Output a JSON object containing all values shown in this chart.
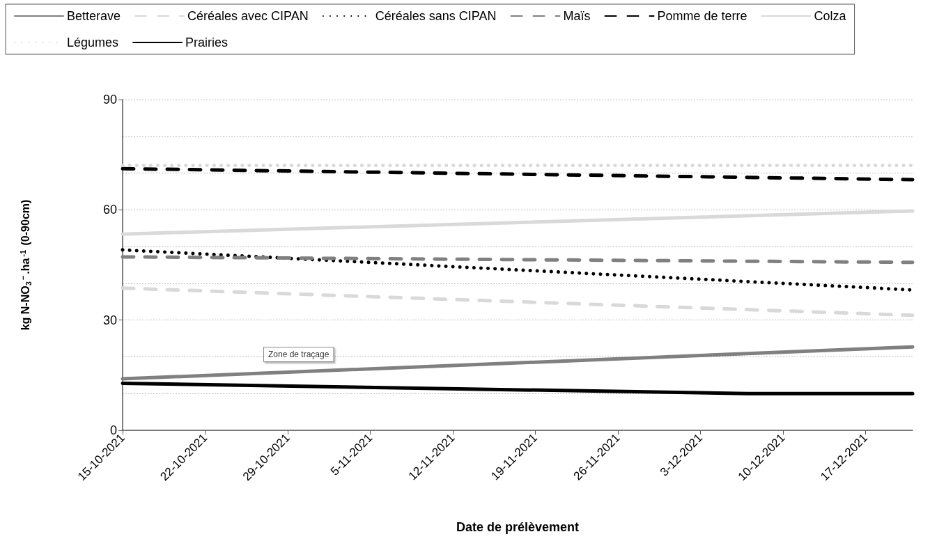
{
  "chart_data": {
    "type": "line",
    "xlabel": "Date de prélèvement",
    "ylabel": "kg N-NO$_{3}$$^{−}$.ha$^{-1}$ (0-90cm)",
    "annotations": [
      "Zone de traçage"
    ],
    "xlim": [
      "2021-10-15",
      "2021-12-21"
    ],
    "xticks": [
      {
        "value": "2021-10-15",
        "label": "15-10-2021"
      },
      {
        "value": "2021-10-22",
        "label": "22-10-2021"
      },
      {
        "value": "2021-10-29",
        "label": "29-10-2021"
      },
      {
        "value": "2021-11-05",
        "label": "5-11-2021"
      },
      {
        "value": "2021-11-12",
        "label": "12-11-2021"
      },
      {
        "value": "2021-11-19",
        "label": "19-11-2021"
      },
      {
        "value": "2021-11-26",
        "label": "26-11-2021"
      },
      {
        "value": "2021-12-03",
        "label": "3-12-2021"
      },
      {
        "value": "2021-12-10",
        "label": "10-12-2021"
      },
      {
        "value": "2021-12-17",
        "label": "17-12-2021"
      }
    ],
    "ylim": [
      0,
      90
    ],
    "yticks": [
      0,
      {
        "value": 10,
        "label": null
      },
      {
        "value": 20,
        "label": null
      },
      30,
      {
        "value": 40,
        "label": null
      },
      {
        "value": 50,
        "label": null
      },
      60,
      {
        "value": 70,
        "label": null
      },
      {
        "value": 80,
        "label": null
      },
      90
    ],
    "grid": "y",
    "legend": "top",
    "marker": "none",
    "series": [
      {
        "name": "Betterave",
        "color": "#808080",
        "line_style": "solid",
        "x": [
          "2021-10-15",
          "2021-12-21"
        ],
        "values": [
          14,
          22.7
        ]
      },
      {
        "name": "Céréales avec CIPAN",
        "color": "#d9d9d9",
        "line_style": "dashed",
        "x": [
          "2021-10-15",
          "2021-12-21"
        ],
        "values": [
          38.7,
          31.3
        ]
      },
      {
        "name": "Céréales sans CIPAN",
        "color": "#000000",
        "line_style": "dotted",
        "x": [
          "2021-10-15",
          "2021-12-21"
        ],
        "values": [
          49.1,
          38.2
        ]
      },
      {
        "name": "Maïs",
        "color": "#808080",
        "line_style": "dashed",
        "x": [
          "2021-10-15",
          "2021-12-21"
        ],
        "values": [
          47.2,
          45.7
        ]
      },
      {
        "name": "Pomme de terre",
        "color": "#000000",
        "line_style": "dashed",
        "x": [
          "2021-10-15",
          "2021-12-21"
        ],
        "values": [
          71.2,
          68.2
        ]
      },
      {
        "name": "Colza",
        "color": "#d9d9d9",
        "line_style": "solid",
        "x": [
          "2021-10-15",
          "2021-12-21"
        ],
        "values": [
          53.4,
          59.7
        ]
      },
      {
        "name": "Légumes",
        "color": "#d9d9d9",
        "line_style": "dotted",
        "x": [
          "2021-10-15",
          "2021-12-21"
        ],
        "values": [
          72.1,
          72.1
        ]
      },
      {
        "name": "Prairies",
        "color": "#000000",
        "line_style": "solid",
        "x": [
          "2021-10-15",
          "2021-12-07",
          "2021-12-21"
        ],
        "values": [
          12.8,
          10,
          10
        ]
      }
    ]
  }
}
